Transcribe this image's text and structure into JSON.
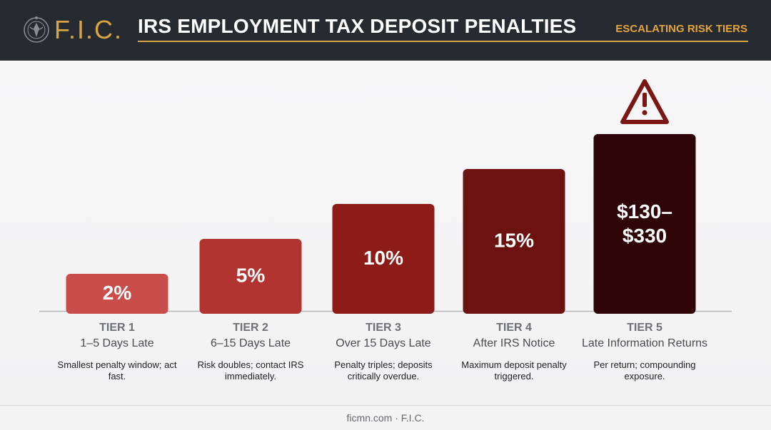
{
  "header": {
    "logo_text": "F.I.C.",
    "title": "IRS EMPLOYMENT TAX DEPOSIT PENALTIES",
    "subtitle": "ESCALATING RISK TIERS"
  },
  "chart_data": {
    "type": "bar",
    "categories": [
      "TIER 1",
      "TIER 2",
      "TIER 3",
      "TIER 4",
      "TIER 5"
    ],
    "names": [
      "1–5 Days Late",
      "6–15 Days Late",
      "Over 15 Days Late",
      "After IRS Notice",
      "Late Information Returns"
    ],
    "descriptions": [
      "Smallest penalty window; act fast.",
      "Risk doubles; contact IRS immediately.",
      "Penalty triples; deposits critically overdue.",
      "Maximum deposit penalty triggered.",
      "Per return; compounding exposure."
    ],
    "data_labels": [
      "2%",
      "5%",
      "10%",
      "15%",
      "$130–$330"
    ],
    "values": [
      1,
      2,
      3,
      4,
      5
    ],
    "colors": [
      "#c94e4b",
      "#b23430",
      "#8d1c18",
      "#6c1210",
      "#2e0406"
    ],
    "warning_icon": "warning-triangle-icon",
    "grid": false,
    "legend": "none"
  },
  "footer": {
    "text": "ficmn.com · F.I.C."
  }
}
